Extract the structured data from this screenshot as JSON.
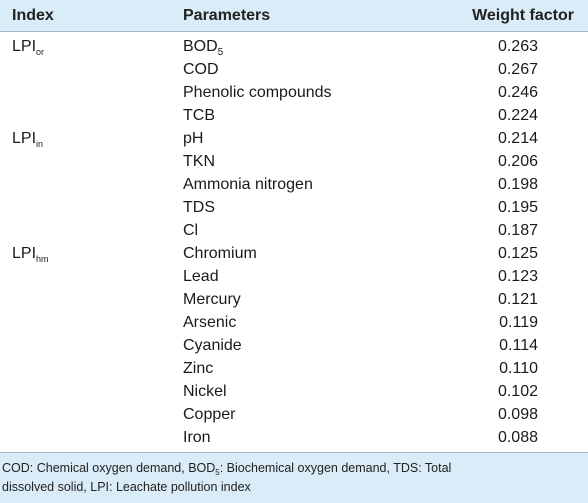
{
  "table": {
    "headers": {
      "index": "Index",
      "parameters": "Parameters",
      "weight": "Weight factor"
    },
    "rows": [
      {
        "index_main": "LPI",
        "index_sub": "or",
        "param_main": "BOD",
        "param_sub": "5",
        "weight": "0.263"
      },
      {
        "index_main": "",
        "index_sub": "",
        "param_main": "COD",
        "param_sub": "",
        "weight": "0.267"
      },
      {
        "index_main": "",
        "index_sub": "",
        "param_main": "Phenolic compounds",
        "param_sub": "",
        "weight": "0.246"
      },
      {
        "index_main": "",
        "index_sub": "",
        "param_main": "TCB",
        "param_sub": "",
        "weight": "0.224"
      },
      {
        "index_main": "LPI",
        "index_sub": "in",
        "param_main": "pH",
        "param_sub": "",
        "weight": "0.214"
      },
      {
        "index_main": "",
        "index_sub": "",
        "param_main": "TKN",
        "param_sub": "",
        "weight": "0.206"
      },
      {
        "index_main": "",
        "index_sub": "",
        "param_main": "Ammonia nitrogen",
        "param_sub": "",
        "weight": "0.198"
      },
      {
        "index_main": "",
        "index_sub": "",
        "param_main": "TDS",
        "param_sub": "",
        "weight": "0.195"
      },
      {
        "index_main": "",
        "index_sub": "",
        "param_main": "Cl",
        "param_sub": "",
        "weight": "0.187"
      },
      {
        "index_main": "LPI",
        "index_sub": "hm",
        "param_main": "Chromium",
        "param_sub": "",
        "weight": "0.125"
      },
      {
        "index_main": "",
        "index_sub": "",
        "param_main": "Lead",
        "param_sub": "",
        "weight": "0.123"
      },
      {
        "index_main": "",
        "index_sub": "",
        "param_main": "Mercury",
        "param_sub": "",
        "weight": "0.121"
      },
      {
        "index_main": "",
        "index_sub": "",
        "param_main": "Arsenic",
        "param_sub": "",
        "weight": "0.119"
      },
      {
        "index_main": "",
        "index_sub": "",
        "param_main": "Cyanide",
        "param_sub": "",
        "weight": "0.114"
      },
      {
        "index_main": "",
        "index_sub": "",
        "param_main": "Zinc",
        "param_sub": "",
        "weight": "0.110"
      },
      {
        "index_main": "",
        "index_sub": "",
        "param_main": "Nickel",
        "param_sub": "",
        "weight": "0.102"
      },
      {
        "index_main": "",
        "index_sub": "",
        "param_main": "Copper",
        "param_sub": "",
        "weight": "0.098"
      },
      {
        "index_main": "",
        "index_sub": "",
        "param_main": "Iron",
        "param_sub": "",
        "weight": "0.088"
      }
    ]
  },
  "footnote": {
    "part1": "COD: Chemical oxygen demand, BOD",
    "part1_sub": "5",
    "part2": ": Biochemical oxygen demand, TDS: Total",
    "line2": "dissolved solid, LPI: Leachate pollution index"
  },
  "colors": {
    "header_bg": "#d9ecf7",
    "footer_bg": "#d9ecf7",
    "border": "#9fb8c8"
  }
}
